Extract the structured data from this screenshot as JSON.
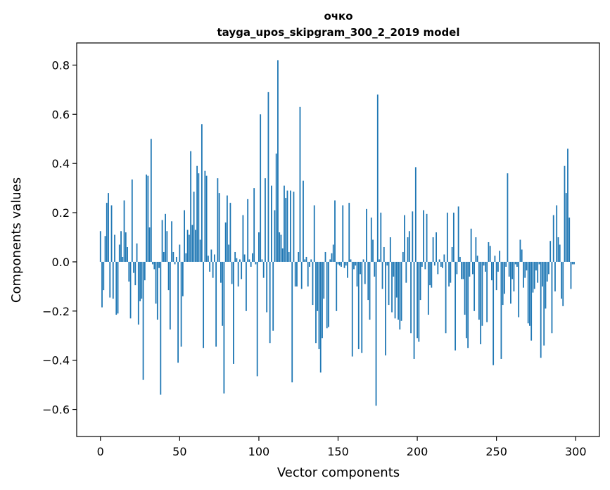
{
  "chart_data": {
    "type": "bar",
    "title": "очко",
    "subtitle": "tayga_upos_skipgram_300_2_2019 model",
    "xlabel": "Vector components",
    "ylabel": "Components values",
    "xlim": [
      -15,
      315
    ],
    "ylim": [
      -0.71,
      0.89
    ],
    "xticks": [
      0,
      50,
      100,
      150,
      200,
      250,
      300
    ],
    "yticks": [
      -0.6,
      -0.4,
      -0.2,
      0.0,
      0.2,
      0.4,
      0.6,
      0.8
    ],
    "ytick_labels": [
      "−0.6",
      "−0.4",
      "−0.2",
      "0.0",
      "0.2",
      "0.4",
      "0.6",
      "0.8"
    ],
    "grid": false,
    "bar_color": "#1f77b4",
    "values": [
      0.125,
      -0.185,
      -0.115,
      0.105,
      0.24,
      0.28,
      -0.145,
      0.23,
      -0.15,
      0.11,
      -0.215,
      -0.21,
      0.07,
      0.125,
      0.02,
      0.25,
      0.12,
      0.06,
      -0.08,
      -0.23,
      0.335,
      -0.045,
      -0.095,
      0.075,
      -0.255,
      -0.16,
      -0.15,
      -0.48,
      -0.075,
      0.355,
      0.35,
      0.14,
      0.5,
      -0.01,
      -0.03,
      -0.17,
      -0.235,
      -0.025,
      -0.54,
      0.17,
      0.04,
      0.195,
      0.125,
      -0.115,
      -0.275,
      0.165,
      0.04,
      -0.01,
      0.02,
      -0.41,
      0.07,
      -0.345,
      -0.14,
      0.21,
      0.035,
      0.13,
      0.11,
      0.45,
      0.15,
      0.285,
      0.13,
      0.39,
      0.36,
      0.09,
      0.56,
      -0.35,
      0.37,
      0.35,
      0.025,
      -0.04,
      0.05,
      -0.065,
      0.03,
      -0.345,
      0.34,
      0.28,
      -0.085,
      -0.26,
      -0.535,
      0.16,
      0.27,
      0.07,
      0.24,
      -0.09,
      -0.415,
      0.04,
      0.015,
      -0.1,
      0.01,
      -0.07,
      0.19,
      0.03,
      -0.2,
      0.255,
      0.01,
      -0.02,
      0.035,
      0.3,
      -0.01,
      -0.465,
      0.12,
      0.6,
      0.01,
      -0.065,
      0.34,
      -0.205,
      0.69,
      -0.33,
      0.31,
      -0.28,
      0.21,
      0.44,
      0.82,
      0.12,
      0.11,
      0.055,
      0.31,
      0.26,
      0.29,
      0.04,
      0.29,
      -0.49,
      0.285,
      -0.1,
      -0.1,
      0.04,
      0.63,
      -0.11,
      0.33,
      0.01,
      0.02,
      -0.1,
      -0.02,
      0.01,
      -0.175,
      0.23,
      -0.33,
      -0.2,
      -0.355,
      -0.45,
      -0.31,
      -0.15,
      0.04,
      -0.27,
      -0.265,
      0.01,
      0.035,
      0.07,
      0.25,
      -0.2,
      -0.01,
      -0.015,
      -0.02,
      0.23,
      -0.025,
      -0.015,
      -0.065,
      0.24,
      0.01,
      -0.385,
      -0.03,
      -0.015,
      -0.1,
      -0.355,
      -0.05,
      -0.37,
      0.01,
      -0.09,
      0.215,
      -0.155,
      -0.235,
      0.18,
      0.09,
      -0.06,
      -0.585,
      0.68,
      0.01,
      0.2,
      -0.11,
      0.06,
      -0.38,
      -0.015,
      -0.175,
      0.1,
      -0.205,
      -0.06,
      -0.23,
      -0.145,
      -0.235,
      -0.275,
      -0.24,
      0.04,
      0.19,
      -0.085,
      0.1,
      0.125,
      -0.29,
      0.205,
      -0.395,
      0.385,
      -0.31,
      -0.325,
      -0.155,
      -0.02,
      0.21,
      -0.03,
      0.195,
      -0.215,
      -0.095,
      -0.105,
      0.1,
      -0.015,
      0.12,
      -0.05,
      0.01,
      -0.02,
      -0.025,
      0.03,
      -0.29,
      0.2,
      -0.1,
      -0.085,
      0.06,
      0.2,
      -0.36,
      -0.05,
      0.225,
      0.02,
      -0.07,
      -0.07,
      -0.215,
      -0.31,
      -0.35,
      -0.06,
      0.135,
      -0.05,
      -0.2,
      0.1,
      0.025,
      -0.235,
      -0.335,
      -0.26,
      -0.015,
      -0.04,
      -0.245,
      0.08,
      0.065,
      -0.075,
      -0.42,
      0.025,
      -0.115,
      -0.04,
      0.045,
      -0.395,
      -0.175,
      -0.13,
      -0.02,
      0.36,
      -0.06,
      -0.17,
      -0.07,
      -0.12,
      -0.01,
      -0.02,
      -0.225,
      0.09,
      0.05,
      -0.105,
      -0.065,
      -0.035,
      -0.25,
      -0.26,
      -0.32,
      -0.125,
      -0.11,
      -0.035,
      -0.085,
      -0.01,
      -0.39,
      -0.1,
      -0.34,
      -0.19,
      -0.08,
      -0.05,
      0.085,
      -0.29,
      0.19,
      -0.12,
      0.23,
      0.1,
      0.07,
      -0.15,
      -0.18,
      0.39,
      0.28,
      0.46,
      0.18,
      -0.11,
      -0.01,
      -0.01
    ]
  }
}
